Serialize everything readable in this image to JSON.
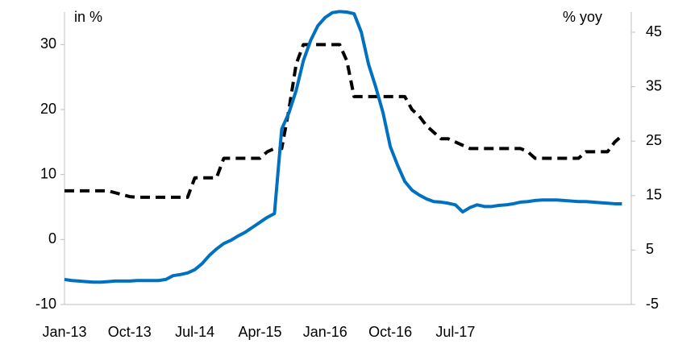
{
  "chart_data": {
    "type": "line",
    "y_label": "in %",
    "y2_label": "% yoy",
    "categories": [
      "Jan-13",
      null,
      null,
      null,
      null,
      null,
      null,
      null,
      null,
      "Oct-13",
      null,
      null,
      null,
      null,
      null,
      null,
      null,
      null,
      "Jul-14",
      null,
      null,
      null,
      null,
      null,
      null,
      null,
      null,
      "Apr-15",
      null,
      null,
      null,
      null,
      null,
      null,
      null,
      null,
      "Jan-16",
      null,
      null,
      null,
      null,
      null,
      null,
      null,
      null,
      "Oct-16",
      null,
      null,
      null,
      null,
      null,
      null,
      null,
      null,
      "Jul-17",
      null,
      null,
      null,
      null,
      null,
      null,
      null,
      null,
      null,
      null,
      null,
      null,
      null,
      null,
      null,
      null,
      null,
      null,
      null,
      null,
      null,
      null,
      null
    ],
    "series": [
      {
        "color": "#000000",
        "dash": true,
        "axis": "y",
        "values": [
          7.5,
          7.5,
          7.5,
          7.5,
          7.5,
          7.5,
          7.5,
          7.2,
          6.9,
          6.6,
          6.5,
          6.5,
          6.5,
          6.5,
          6.5,
          6.5,
          6.5,
          6.5,
          9.5,
          9.5,
          9.5,
          9.5,
          12.5,
          12.5,
          12.5,
          12.5,
          12.5,
          12.5,
          13.5,
          14,
          14,
          20,
          27,
          30,
          30,
          30,
          30,
          30,
          30,
          27.5,
          22,
          22,
          22,
          22,
          22,
          22,
          22,
          22,
          20,
          19,
          17.5,
          16.5,
          15.5,
          15.5,
          15,
          14.5,
          14,
          14,
          14,
          14,
          14,
          14,
          14,
          14,
          13.5,
          12.5,
          12.5,
          12.5,
          12.5,
          12.5,
          12.5,
          12.5,
          13.5,
          13.5,
          13.5,
          13.5,
          15,
          16
        ]
      },
      {
        "color": "#0070c0",
        "dash": false,
        "axis": "y2",
        "values": [
          -0.4,
          -0.6,
          -0.7,
          -0.8,
          -0.9,
          -0.9,
          -0.8,
          -0.7,
          -0.7,
          -0.7,
          -0.6,
          -0.6,
          -0.6,
          -0.6,
          -0.4,
          0.3,
          0.5,
          0.8,
          1.4,
          2.5,
          4.0,
          5.2,
          6.2,
          6.8,
          7.6,
          8.3,
          9.2,
          10.1,
          11.0,
          11.7,
          27.2,
          30.2,
          34.3,
          39.8,
          43.5,
          46.2,
          47.7,
          48.6,
          48.8,
          48.7,
          48.4,
          45.0,
          39.1,
          34.9,
          30.2,
          24.0,
          20.6,
          17.6,
          16.0,
          15.1,
          14.4,
          13.9,
          13.8,
          13.6,
          13.3,
          12.0,
          12.8,
          13.3,
          13.0,
          13.0,
          13.2,
          13.3,
          13.5,
          13.8,
          13.9,
          14.1,
          14.2,
          14.2,
          14.2,
          14.1,
          14.0,
          13.9,
          13.9,
          13.8,
          13.7,
          13.6,
          13.5,
          13.5
        ]
      }
    ],
    "ylim": [
      -10,
      35
    ],
    "yticks": [
      -10,
      0,
      10,
      20,
      30
    ],
    "y2lim": [
      -5,
      48.7
    ],
    "y2ticks": [
      -5,
      5,
      15,
      25,
      35,
      45
    ]
  }
}
